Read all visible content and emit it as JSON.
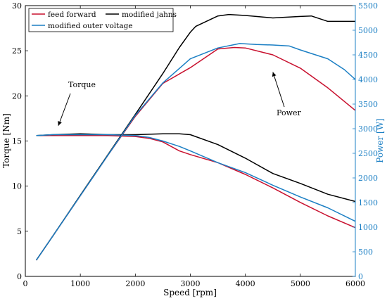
{
  "chart_data": {
    "type": "line",
    "title": "",
    "xlabel": "Speed [rpm]",
    "ylabel_left": "Torque [Nm]",
    "ylabel_right": "Power [W]",
    "xlim": [
      0,
      6000
    ],
    "ylim_left": [
      0,
      30
    ],
    "ylim_right": [
      0,
      5500
    ],
    "xticks": [
      "0",
      "1000",
      "2000",
      "3000",
      "4000",
      "5000",
      "6000"
    ],
    "yticks_left": [
      "0",
      "5",
      "10",
      "15",
      "20",
      "25",
      "30"
    ],
    "yticks_right": [
      "0",
      "500",
      "1000",
      "1500",
      "2000",
      "2500",
      "3000",
      "3500",
      "4000",
      "4500",
      "5000",
      "5500"
    ],
    "grid": false,
    "legend_position": "top-left",
    "colors": {
      "feed_forward": "#c8102e",
      "modified_jahns": "#000000",
      "modified_outer_voltage": "#1b7fc4",
      "right_axis": "#1b7fc4"
    },
    "series": [
      {
        "name": "feed forward",
        "axis": "left",
        "quantity": "torque",
        "x": [
          200,
          500,
          1000,
          1500,
          2000,
          2250,
          2500,
          2800,
          3000,
          3500,
          4000,
          4500,
          5000,
          5500,
          6000
        ],
        "y": [
          15.6,
          15.6,
          15.6,
          15.6,
          15.5,
          15.3,
          14.9,
          13.9,
          13.5,
          12.6,
          11.3,
          9.8,
          8.2,
          6.7,
          5.4
        ]
      },
      {
        "name": "modified jahns",
        "axis": "left",
        "quantity": "torque",
        "x": [
          200,
          500,
          1000,
          1500,
          2000,
          2500,
          2800,
          3000,
          3500,
          4000,
          4500,
          5000,
          5500,
          6000
        ],
        "y": [
          15.6,
          15.7,
          15.8,
          15.7,
          15.7,
          15.8,
          15.8,
          15.7,
          14.6,
          13.1,
          11.4,
          10.3,
          9.1,
          8.3
        ]
      },
      {
        "name": "modified outer voltage",
        "axis": "left",
        "quantity": "torque",
        "x": [
          200,
          500,
          1000,
          1500,
          2000,
          2250,
          2500,
          2800,
          3000,
          3500,
          4000,
          4500,
          5000,
          5500,
          6000
        ],
        "y": [
          15.6,
          15.7,
          15.7,
          15.7,
          15.6,
          15.4,
          15.0,
          14.4,
          13.9,
          12.6,
          11.5,
          10.1,
          8.8,
          7.6,
          6.1
        ]
      },
      {
        "name": "feed forward",
        "axis": "right",
        "quantity": "power",
        "x": [
          200,
          500,
          1000,
          1500,
          2000,
          2500,
          3000,
          3500,
          3800,
          4000,
          4500,
          5000,
          5500,
          6000
        ],
        "y": [
          330,
          820,
          1640,
          2460,
          3250,
          3920,
          4240,
          4620,
          4650,
          4640,
          4500,
          4230,
          3830,
          3370
        ]
      },
      {
        "name": "modified jahns",
        "axis": "right",
        "quantity": "power",
        "x": [
          200,
          500,
          1000,
          1500,
          2000,
          2500,
          2800,
          3000,
          3100,
          3500,
          3700,
          4000,
          4500,
          5000,
          5200,
          5500,
          6000
        ],
        "y": [
          330,
          820,
          1650,
          2470,
          3290,
          4120,
          4650,
          4960,
          5080,
          5290,
          5320,
          5300,
          5250,
          5280,
          5290,
          5180,
          5180
        ]
      },
      {
        "name": "modified outer voltage",
        "axis": "right",
        "quantity": "power",
        "x": [
          200,
          500,
          1000,
          1500,
          2000,
          2500,
          3000,
          3500,
          3900,
          4200,
          4500,
          4800,
          5000,
          5500,
          5800,
          6000
        ],
        "y": [
          330,
          820,
          1640,
          2460,
          3270,
          3930,
          4420,
          4640,
          4730,
          4710,
          4700,
          4680,
          4600,
          4420,
          4200,
          4000
        ]
      }
    ],
    "annotations": [
      {
        "text": "Torque",
        "target": {
          "x": 600,
          "y": 16.7,
          "axis": "left"
        }
      },
      {
        "text": "Power",
        "target": {
          "x": 4500,
          "y": 4150,
          "axis": "right"
        }
      }
    ]
  }
}
